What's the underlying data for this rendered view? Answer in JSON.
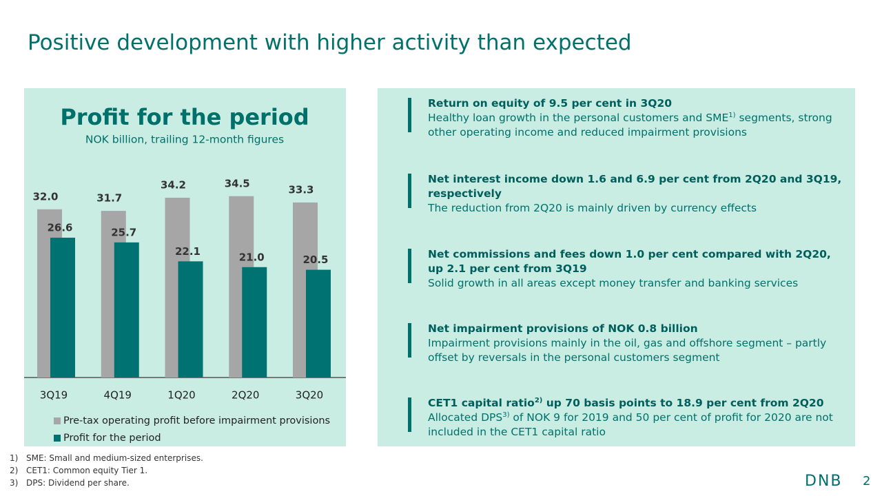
{
  "title": "Positive development with higher activity than expected",
  "chart_data": {
    "type": "bar",
    "title": "Profit for the period",
    "subtitle": "NOK billion, trailing 12-month figures",
    "categories": [
      "3Q19",
      "4Q19",
      "1Q20",
      "2Q20",
      "3Q20"
    ],
    "series": [
      {
        "name": "Pre-tax operating profit before impairment provisions",
        "color": "#a6a6a6",
        "values": [
          32.0,
          31.7,
          34.2,
          34.5,
          33.3
        ],
        "value_labels": [
          "32.0",
          "31.7",
          "34.2",
          "34.5",
          "33.3"
        ]
      },
      {
        "name": "Profit for the period",
        "color": "#007272",
        "values": [
          26.6,
          25.7,
          22.1,
          21.0,
          20.5
        ],
        "value_labels": [
          "26.6",
          "25.7",
          "22.1",
          "21.0",
          "20.5"
        ]
      }
    ]
  },
  "bullets": [
    {
      "heading": [
        "Return on equity of 9.5 per cent in 3Q20"
      ],
      "body": [
        "Healthy loan growth in the personal customers and SME",
        "1)",
        " segments, strong other operating income and reduced impairment provisions"
      ]
    },
    {
      "heading": [
        "Net interest income down 1.6 and 6.9 per cent from 2Q20 and 3Q19, respectively"
      ],
      "body": [
        "The reduction from 2Q20 is mainly driven by currency effects"
      ]
    },
    {
      "heading": [
        "Net commissions and fees down 1.0 per cent compared with 2Q20, up 2.1 per cent from 3Q19"
      ],
      "body": [
        "Solid growth in all areas except money transfer and banking services"
      ]
    },
    {
      "heading": [
        "Net impairment provisions of NOK 0.8 billion"
      ],
      "body": [
        "Impairment provisions mainly in the oil, gas and offshore segment – partly offset by reversals in the personal customers segment"
      ]
    },
    {
      "heading": [
        "CET1 capital ratio",
        "2)",
        " up 70 basis points to 18.9 per cent from 2Q20"
      ],
      "body": [
        "Allocated DPS",
        "3)",
        " of NOK 9 for 2019 and 50 per cent of profit for 2020 are not included in the CET1 capital ratio"
      ]
    }
  ],
  "footnotes": [
    {
      "marker": "1)",
      "text": "SME: Small and medium-sized enterprises."
    },
    {
      "marker": "2)",
      "text": "CET1: Common equity Tier 1."
    },
    {
      "marker": "3)",
      "text": "DPS: Dividend per share."
    }
  ],
  "logo": "DNB",
  "page_number": "2"
}
